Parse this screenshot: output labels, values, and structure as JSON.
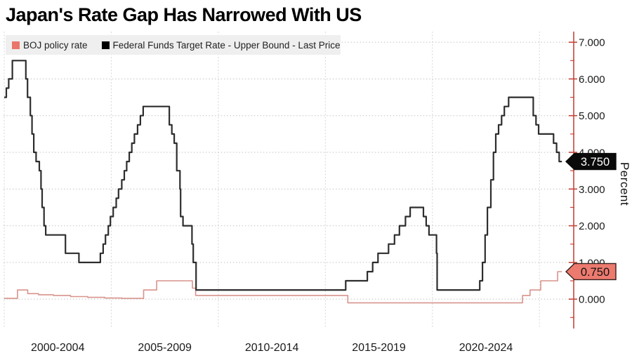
{
  "title": "Japan's Rate Gap Has Narrowed With US",
  "legend": {
    "items": [
      {
        "label": "BOJ policy rate",
        "color": "#e9756b"
      },
      {
        "label": "Federal Funds Target Rate - Upper Bound - Last Price",
        "color": "#000000"
      }
    ]
  },
  "axis": {
    "y_label": "Percent",
    "axis_color": "#c5463c",
    "grid_color_h": "#c2c2c2",
    "grid_color_v": "#d6d6d6",
    "y_ticks": [
      {
        "value": 0,
        "label": "0.000"
      },
      {
        "value": 1,
        "label": "1.000"
      },
      {
        "value": 2,
        "label": "2.000"
      },
      {
        "value": 3,
        "label": "3.000"
      },
      {
        "value": 4,
        "label": "4.000"
      },
      {
        "value": 5,
        "label": "5.000"
      },
      {
        "value": 6,
        "label": "6.000"
      },
      {
        "value": 7,
        "label": "7.000"
      }
    ],
    "minor_ticks": [
      -0.5,
      0.5,
      1.5,
      2.5,
      3.5,
      4.5,
      5.5,
      6.5
    ],
    "x_labels": [
      {
        "label": "2000-2004",
        "center_year": 2002.5
      },
      {
        "label": "2005-2009",
        "center_year": 2007.5
      },
      {
        "label": "2010-2014",
        "center_year": 2012.5
      },
      {
        "label": "2015-2019",
        "center_year": 2017.5
      },
      {
        "label": "2020-2024",
        "center_year": 2022.5
      }
    ]
  },
  "chart_data": {
    "type": "line",
    "step": true,
    "title": "Japan's Rate Gap Has Narrowed With US",
    "ylabel": "Percent",
    "x_range": [
      2000,
      2026.6
    ],
    "y_range": [
      -0.8,
      7.29
    ],
    "grid_years": [
      2000,
      2005,
      2010,
      2015,
      2020,
      2025
    ],
    "grid_values": [
      0,
      1,
      2,
      3,
      4,
      5,
      6,
      7
    ],
    "series": [
      {
        "name": "BOJ policy rate",
        "color": "#d8938c",
        "width": 1.6,
        "points": [
          [
            2000.0,
            0.02
          ],
          [
            2000.62,
            0.25
          ],
          [
            2001.1,
            0.15
          ],
          [
            2001.6,
            0.12
          ],
          [
            2002.3,
            0.1
          ],
          [
            2003.1,
            0.07
          ],
          [
            2003.9,
            0.05
          ],
          [
            2004.7,
            0.03
          ],
          [
            2005.5,
            0.02
          ],
          [
            2006.51,
            0.25
          ],
          [
            2007.12,
            0.5
          ],
          [
            2008.79,
            0.3
          ],
          [
            2008.94,
            0.1
          ],
          [
            2016.05,
            -0.1
          ],
          [
            2024.21,
            0.1
          ],
          [
            2024.56,
            0.25
          ],
          [
            2025.06,
            0.5
          ],
          [
            2025.85,
            0.75
          ],
          [
            2026.05,
            0.75
          ]
        ],
        "last_price": {
          "label": "0.750",
          "value": 0.75,
          "box_fill": "#ed7a6f",
          "text_color": "#111111",
          "border_color": "#35201d"
        }
      },
      {
        "name": "Federal Funds Target Rate - Upper Bound - Last Price",
        "color": "#2d2d2d",
        "width": 2.2,
        "points": [
          [
            2000.0,
            5.5
          ],
          [
            2000.1,
            5.75
          ],
          [
            2000.21,
            6.0
          ],
          [
            2000.38,
            6.5
          ],
          [
            2001.01,
            6.0
          ],
          [
            2001.09,
            5.5
          ],
          [
            2001.22,
            5.0
          ],
          [
            2001.3,
            4.5
          ],
          [
            2001.38,
            4.0
          ],
          [
            2001.49,
            3.75
          ],
          [
            2001.64,
            3.5
          ],
          [
            2001.72,
            3.0
          ],
          [
            2001.77,
            2.5
          ],
          [
            2001.86,
            2.0
          ],
          [
            2001.94,
            1.75
          ],
          [
            2002.86,
            1.25
          ],
          [
            2003.49,
            1.0
          ],
          [
            2004.49,
            1.25
          ],
          [
            2004.62,
            1.5
          ],
          [
            2004.73,
            1.75
          ],
          [
            2004.86,
            2.0
          ],
          [
            2004.96,
            2.25
          ],
          [
            2005.09,
            2.5
          ],
          [
            2005.23,
            2.75
          ],
          [
            2005.34,
            3.0
          ],
          [
            2005.49,
            3.25
          ],
          [
            2005.61,
            3.5
          ],
          [
            2005.72,
            3.75
          ],
          [
            2005.84,
            4.0
          ],
          [
            2005.96,
            4.25
          ],
          [
            2006.08,
            4.5
          ],
          [
            2006.23,
            4.75
          ],
          [
            2006.36,
            5.0
          ],
          [
            2006.49,
            5.25
          ],
          [
            2007.71,
            4.75
          ],
          [
            2007.83,
            4.5
          ],
          [
            2007.94,
            4.25
          ],
          [
            2008.06,
            3.5
          ],
          [
            2008.21,
            3.0
          ],
          [
            2008.24,
            2.25
          ],
          [
            2008.35,
            2.0
          ],
          [
            2008.77,
            1.5
          ],
          [
            2008.83,
            1.0
          ],
          [
            2008.96,
            0.25
          ],
          [
            2015.95,
            0.5
          ],
          [
            2016.96,
            0.75
          ],
          [
            2017.21,
            1.0
          ],
          [
            2017.46,
            1.25
          ],
          [
            2017.95,
            1.5
          ],
          [
            2018.23,
            1.75
          ],
          [
            2018.46,
            2.0
          ],
          [
            2018.74,
            2.25
          ],
          [
            2018.96,
            2.5
          ],
          [
            2019.58,
            2.25
          ],
          [
            2019.71,
            2.0
          ],
          [
            2019.84,
            1.75
          ],
          [
            2020.19,
            1.25
          ],
          [
            2020.22,
            0.25
          ],
          [
            2022.21,
            0.5
          ],
          [
            2022.34,
            1.0
          ],
          [
            2022.46,
            1.75
          ],
          [
            2022.57,
            2.5
          ],
          [
            2022.73,
            3.25
          ],
          [
            2022.85,
            4.0
          ],
          [
            2022.96,
            4.5
          ],
          [
            2023.09,
            4.75
          ],
          [
            2023.23,
            5.0
          ],
          [
            2023.36,
            5.25
          ],
          [
            2023.56,
            5.5
          ],
          [
            2024.71,
            5.0
          ],
          [
            2024.84,
            4.75
          ],
          [
            2024.96,
            4.5
          ],
          [
            2025.66,
            4.25
          ],
          [
            2025.8,
            4.0
          ],
          [
            2025.92,
            3.75
          ],
          [
            2026.05,
            3.75
          ]
        ],
        "last_price": {
          "label": "3.750",
          "value": 3.75,
          "box_fill": "#0a0a0a",
          "text_color": "#ffffff",
          "border_color": "#0a0a0a"
        }
      }
    ]
  }
}
